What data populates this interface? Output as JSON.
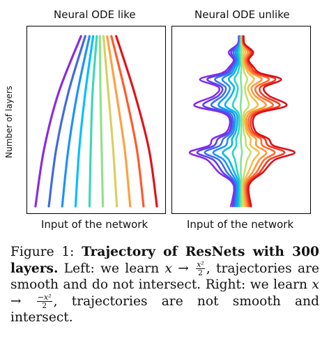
{
  "figure": {
    "left_title": "Neural ODE like",
    "right_title": "Neural ODE unlike",
    "left_xlabel": "Input of the network",
    "right_xlabel": "Input of the network",
    "ylabel": "Number of layers"
  },
  "caption": {
    "label": "Figure 1:",
    "title": "Trajectory of ResNets with 300 layers.",
    "text_left_intro": "Left: we learn",
    "text_left_map_lhs": "x →",
    "text_left_frac_num": "x²",
    "text_left_frac_den": "2",
    "text_left_outro": ", trajectories are smooth and do not intersect.",
    "text_right_intro": "Right: we learn",
    "text_right_map_lhs": "x →",
    "text_right_frac_num": "−x²",
    "text_right_frac_den": "2",
    "text_right_outro": ", trajectories are not smooth and intersect."
  },
  "chart_data": [
    {
      "type": "line",
      "title": "Neural ODE like",
      "xlabel": "Input of the network",
      "ylabel": "Number of layers",
      "ylim": [
        0,
        300
      ],
      "grid": false,
      "colormap": "rainbow",
      "series": [
        {
          "color": "#8a2be2",
          "x": [
            -1.0,
            -0.86,
            -0.62,
            -0.25
          ],
          "y": [
            0,
            100,
            200,
            300
          ]
        },
        {
          "color": "#4169e1",
          "x": [
            -0.78,
            -0.66,
            -0.46,
            -0.18
          ],
          "y": [
            0,
            100,
            200,
            300
          ]
        },
        {
          "color": "#1e90ff",
          "x": [
            -0.56,
            -0.46,
            -0.31,
            -0.11
          ],
          "y": [
            0,
            100,
            200,
            300
          ]
        },
        {
          "color": "#00bfff",
          "x": [
            -0.34,
            -0.28,
            -0.18,
            -0.05
          ],
          "y": [
            0,
            100,
            200,
            300
          ]
        },
        {
          "color": "#3cd8b4",
          "x": [
            -0.11,
            -0.09,
            -0.06,
            0.01
          ],
          "y": [
            0,
            100,
            200,
            300
          ]
        },
        {
          "color": "#8fe28a",
          "x": [
            0.11,
            0.09,
            0.07,
            0.06
          ],
          "y": [
            0,
            100,
            200,
            300
          ]
        },
        {
          "color": "#d8d060",
          "x": [
            0.34,
            0.28,
            0.2,
            0.12
          ],
          "y": [
            0,
            100,
            200,
            300
          ]
        },
        {
          "color": "#ffa040",
          "x": [
            0.56,
            0.47,
            0.33,
            0.18
          ],
          "y": [
            0,
            100,
            200,
            300
          ]
        },
        {
          "color": "#ff5a2a",
          "x": [
            0.78,
            0.67,
            0.48,
            0.25
          ],
          "y": [
            0,
            100,
            200,
            300
          ]
        },
        {
          "color": "#e3101a",
          "x": [
            1.0,
            0.87,
            0.63,
            0.33
          ],
          "y": [
            0,
            100,
            200,
            300
          ]
        }
      ]
    },
    {
      "type": "line",
      "title": "Neural ODE unlike",
      "xlabel": "Input of the network",
      "ylabel": "Number of layers",
      "ylim": [
        0,
        300
      ],
      "grid": false,
      "colormap": "rainbow",
      "y": [
        0,
        30,
        45,
        60,
        82,
        95,
        107,
        119,
        131,
        152,
        165,
        178,
        195,
        210,
        224,
        235,
        246,
        258,
        272,
        286,
        300
      ],
      "half_widths": [
        0.17,
        0.12,
        0.17,
        0.36,
        0.57,
        0.87,
        0.52,
        0.46,
        0.25,
        0.19,
        0.3,
        0.77,
        0.46,
        0.37,
        0.66,
        0.32,
        0.2,
        0.12,
        0.2,
        0.06,
        0.04
      ],
      "n_series": 13,
      "colors": [
        "#8a2be2",
        "#5b3ff0",
        "#3a6fe8",
        "#1e90ff",
        "#00b7e8",
        "#2ad3c4",
        "#7ee49a",
        "#c4df6e",
        "#f0c04a",
        "#ff9838",
        "#ff6a2c",
        "#f03a20",
        "#d8101a"
      ]
    }
  ]
}
